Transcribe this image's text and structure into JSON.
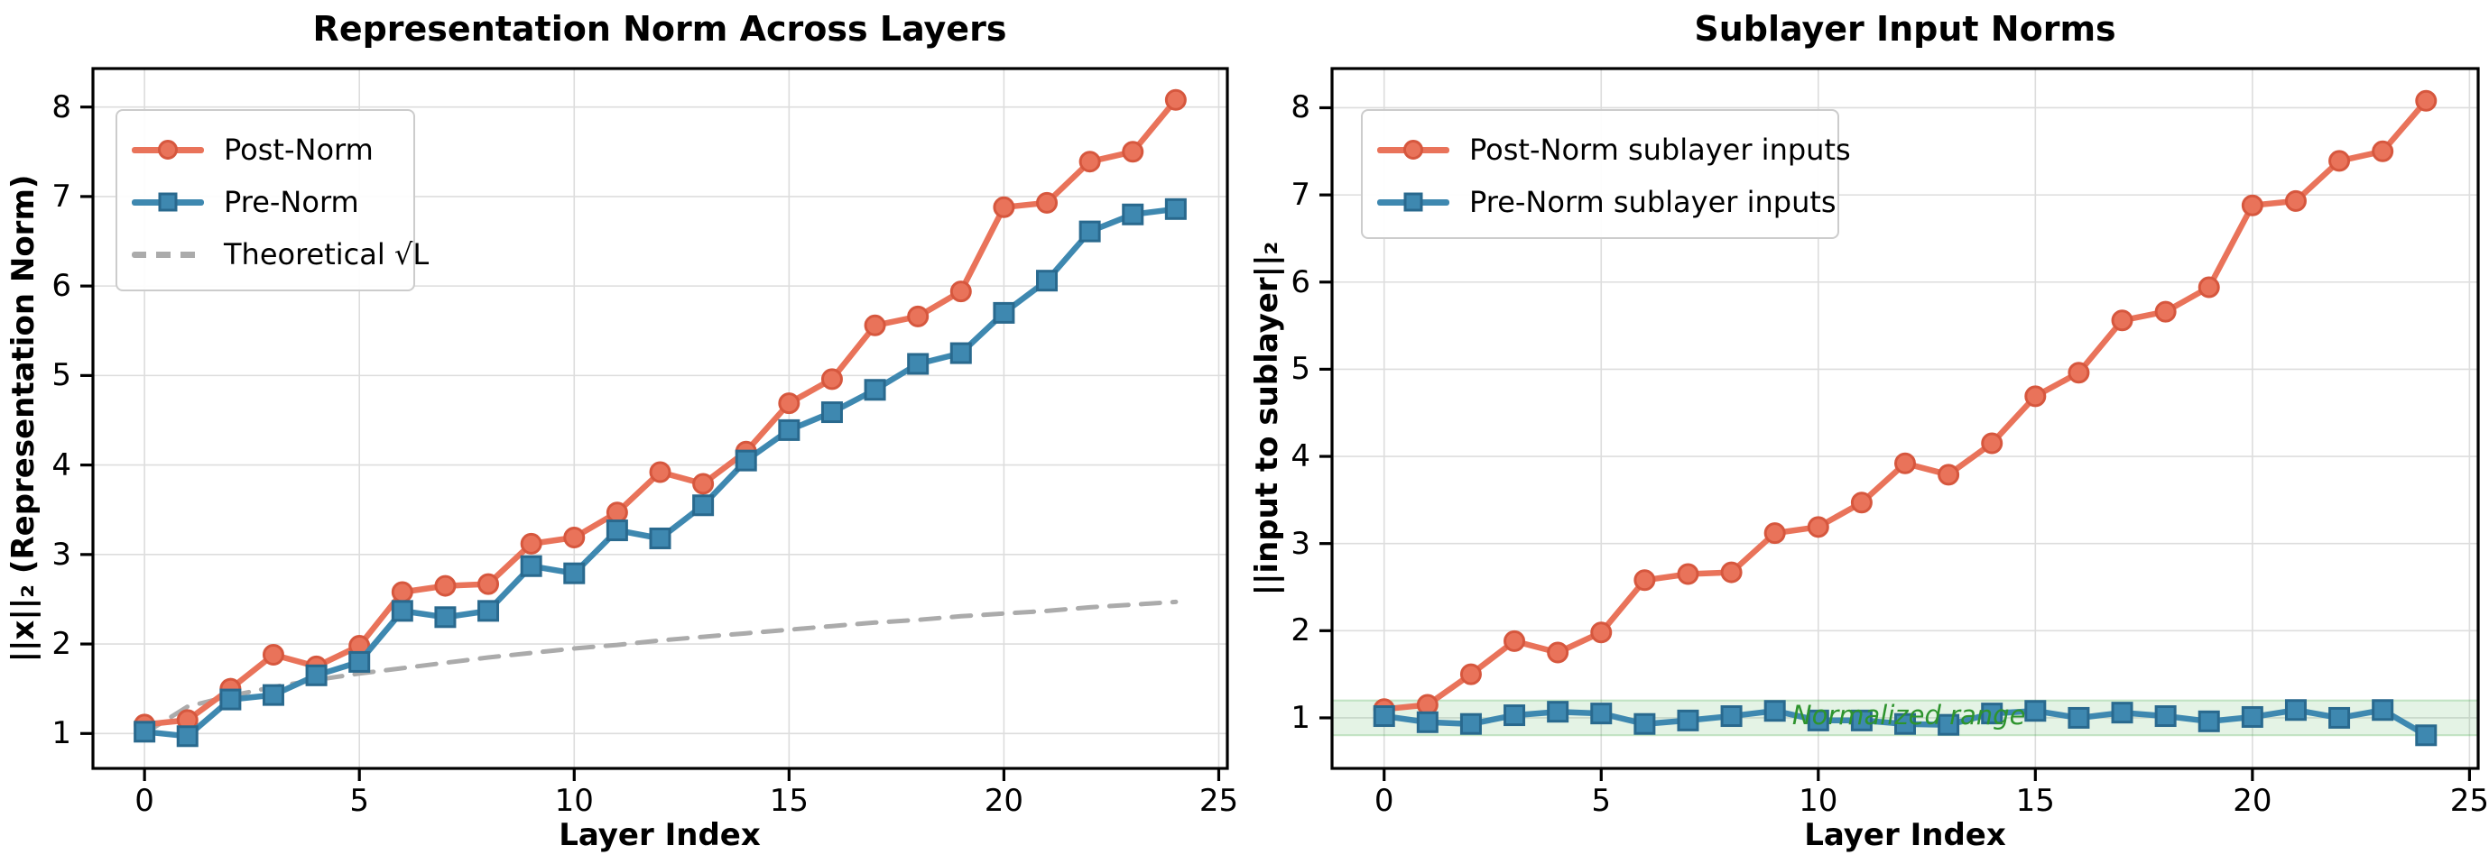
{
  "figure": {
    "background": "#ffffff",
    "grid_color": "#dddddd",
    "spine_color": "#000000"
  },
  "chart_data": [
    {
      "id": "left",
      "type": "line",
      "title": "Representation Norm Across Layers",
      "xlabel": "Layer Index",
      "ylabel": "||x||₂ (Representation Norm)",
      "xlim": [
        -1.2,
        25.2
      ],
      "ylim": [
        0.61,
        8.43
      ],
      "xticks": [
        0,
        5,
        10,
        15,
        20,
        25
      ],
      "yticks": [
        1,
        2,
        3,
        4,
        5,
        6,
        7,
        8
      ],
      "grid": true,
      "legend_position": "upper left",
      "x": [
        0,
        1,
        2,
        3,
        4,
        5,
        6,
        7,
        8,
        9,
        10,
        11,
        12,
        13,
        14,
        15,
        16,
        17,
        18,
        19,
        20,
        21,
        22,
        23,
        24
      ],
      "series": [
        {
          "name": "Post-Norm",
          "marker": "circle",
          "color": "#E9735A",
          "marker_edge": "#D6573E",
          "values": [
            1.1,
            1.15,
            1.5,
            1.88,
            1.75,
            1.98,
            2.58,
            2.65,
            2.67,
            3.12,
            3.19,
            3.47,
            3.92,
            3.79,
            4.15,
            4.69,
            4.96,
            5.56,
            5.66,
            5.94,
            6.88,
            6.93,
            7.39,
            7.5,
            8.08
          ]
        },
        {
          "name": "Pre-Norm",
          "marker": "square",
          "color": "#3E88B0",
          "marker_edge": "#29698E",
          "values": [
            1.02,
            0.97,
            1.38,
            1.43,
            1.65,
            1.8,
            2.37,
            2.3,
            2.37,
            2.87,
            2.79,
            3.27,
            3.18,
            3.55,
            4.05,
            4.39,
            4.59,
            4.84,
            5.13,
            5.25,
            5.7,
            6.06,
            6.61,
            6.8,
            6.86
          ]
        },
        {
          "name": "Theoretical √L",
          "marker": "none",
          "dashed": true,
          "color": "#ABABAB",
          "marker_edge": "#ABABAB",
          "values": [
            1.0,
            1.3,
            1.42,
            1.52,
            1.6,
            1.67,
            1.73,
            1.79,
            1.85,
            1.9,
            1.95,
            1.99,
            2.04,
            2.08,
            2.12,
            2.16,
            2.2,
            2.24,
            2.27,
            2.31,
            2.34,
            2.37,
            2.41,
            2.44,
            2.47
          ]
        }
      ]
    },
    {
      "id": "right",
      "type": "line",
      "title": "Sublayer Input Norms",
      "xlabel": "Layer Index",
      "ylabel": "||input to sublayer||₂",
      "xlim": [
        -1.2,
        25.2
      ],
      "ylim": [
        0.42,
        8.45
      ],
      "xticks": [
        0,
        5,
        10,
        15,
        20,
        25
      ],
      "yticks": [
        1,
        2,
        3,
        4,
        5,
        6,
        7,
        8
      ],
      "grid": true,
      "legend_position": "upper left",
      "x": [
        0,
        1,
        2,
        3,
        4,
        5,
        6,
        7,
        8,
        9,
        10,
        11,
        12,
        13,
        14,
        15,
        16,
        17,
        18,
        19,
        20,
        21,
        22,
        23,
        24
      ],
      "band": {
        "ymin": 0.8,
        "ymax": 1.2,
        "color": "#4CAF50",
        "opacity": 0.15
      },
      "annotation": {
        "text": "Normalized range",
        "x": 9.4,
        "y": 1.03,
        "color": "#2E942E"
      },
      "series": [
        {
          "name": "Post-Norm sublayer inputs",
          "marker": "circle",
          "color": "#E9735A",
          "marker_edge": "#D6573E",
          "values": [
            1.1,
            1.15,
            1.5,
            1.88,
            1.75,
            1.98,
            2.58,
            2.65,
            2.67,
            3.12,
            3.19,
            3.47,
            3.92,
            3.79,
            4.15,
            4.69,
            4.96,
            5.56,
            5.66,
            5.94,
            6.88,
            6.93,
            7.39,
            7.5,
            8.08
          ]
        },
        {
          "name": "Pre-Norm sublayer inputs",
          "marker": "square",
          "color": "#3E88B0",
          "marker_edge": "#29698E",
          "values": [
            1.02,
            0.95,
            0.93,
            1.03,
            1.07,
            1.05,
            0.93,
            0.97,
            1.02,
            1.08,
            0.97,
            0.97,
            0.93,
            0.92,
            1.05,
            1.08,
            1.0,
            1.06,
            1.02,
            0.96,
            1.01,
            1.09,
            1.0,
            1.09,
            0.8
          ]
        }
      ]
    }
  ]
}
